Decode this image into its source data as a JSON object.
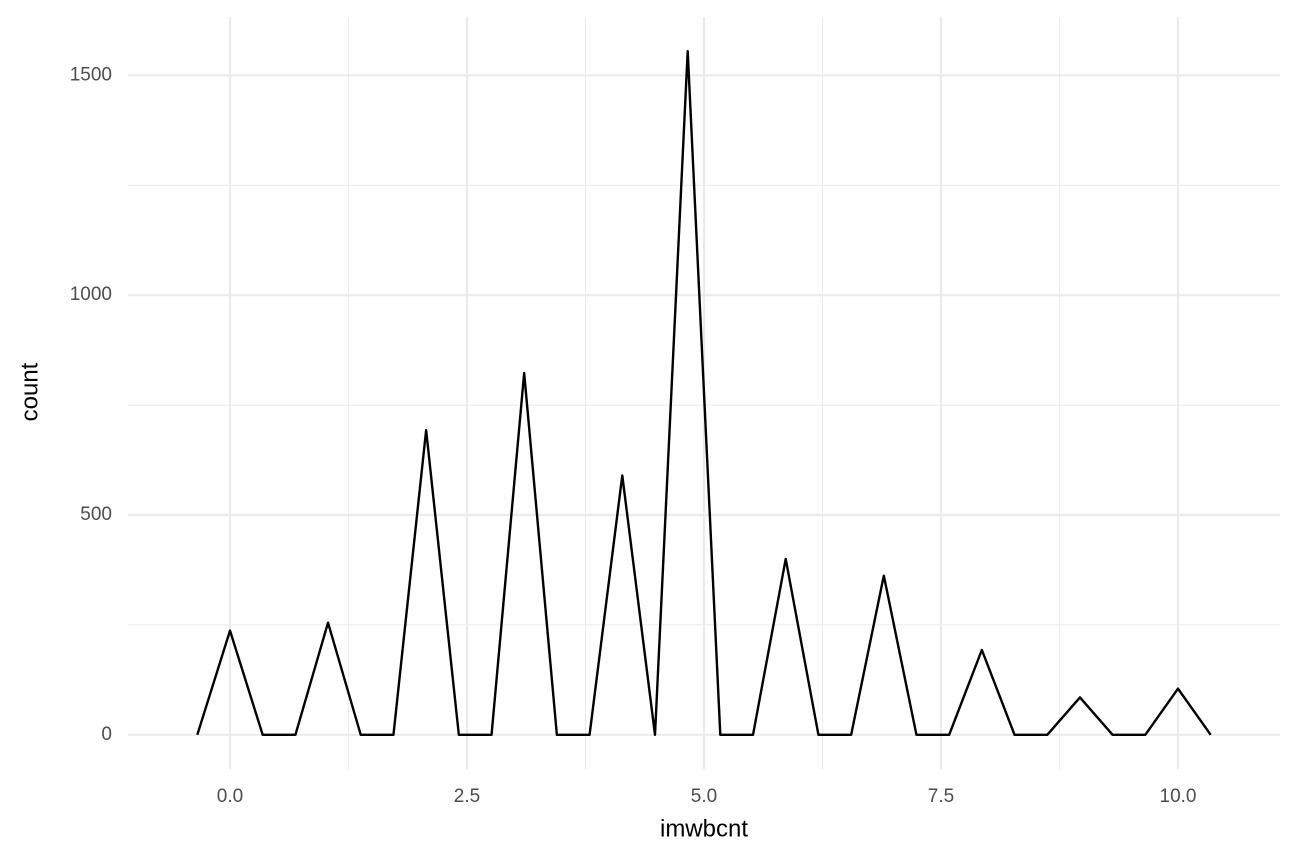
{
  "chart_data": {
    "type": "line",
    "x_label": "imwbcnt",
    "y_label": "count",
    "x": [
      -0.345,
      0,
      0.345,
      0.69,
      1.034,
      1.379,
      1.724,
      2.069,
      2.414,
      2.759,
      3.103,
      3.448,
      3.793,
      4.138,
      4.483,
      4.828,
      5.172,
      5.517,
      5.862,
      6.207,
      6.552,
      6.897,
      7.241,
      7.586,
      7.931,
      8.276,
      8.621,
      8.966,
      9.31,
      9.655,
      10,
      10.345
    ],
    "series": [
      {
        "color": "#000000",
        "values": [
          0,
          237,
          0,
          0,
          255,
          0,
          0,
          693,
          0,
          0,
          823,
          0,
          0,
          590,
          0,
          1555,
          0,
          0,
          400,
          0,
          0,
          362,
          0,
          0,
          193,
          0,
          0,
          85,
          0,
          0,
          105,
          0
        ]
      }
    ],
    "xlim": [
      -1.076,
      11.076
    ],
    "ylim": [
      -77.75,
      1632.75
    ],
    "xticks": [
      {
        "value": 0,
        "label": "0.0"
      },
      2.5,
      {
        "value": 5,
        "label": "5.0"
      },
      7.5,
      {
        "value": 10,
        "label": "10.0"
      }
    ],
    "yticks": [
      0,
      500,
      1000,
      1500
    ],
    "x_minor_grid": [
      1.25,
      3.75,
      6.25,
      8.75
    ],
    "y_minor_grid": [
      250,
      750,
      1250
    ],
    "grid": true,
    "grid_color": "#ebebeb"
  }
}
